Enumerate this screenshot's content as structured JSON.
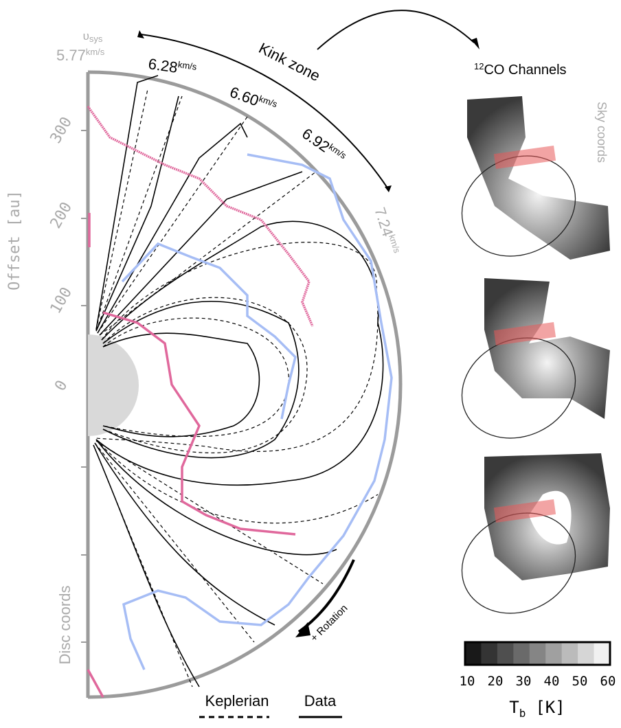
{
  "panel": {
    "ylabel": "Offset [au]",
    "yticks": [
      0,
      100,
      200,
      300
    ],
    "vsys": {
      "symbol": "υ",
      "sub": "sys",
      "value": "5.77",
      "unit": "km/s"
    },
    "velocities": [
      {
        "value": "6.28",
        "unit": "km/s"
      },
      {
        "value": "6.60",
        "unit": "km/s"
      },
      {
        "value": "6.92",
        "unit": "km/s"
      },
      {
        "value": "7.24",
        "unit": "km/s"
      }
    ],
    "kink_label": "Kink zone",
    "disc_label": "Disc coords",
    "rotation_label": "+ Rotation",
    "legend": {
      "kepler": "Keplerian",
      "data": "Data"
    }
  },
  "channels": {
    "sup": "12",
    "title": "CO Channels",
    "sky_label": "Sky coords"
  },
  "colorbar": {
    "ticks": [
      10,
      20,
      30,
      40,
      50,
      60
    ],
    "symbol": "T",
    "sub": "b",
    "unit": "[K]"
  }
}
